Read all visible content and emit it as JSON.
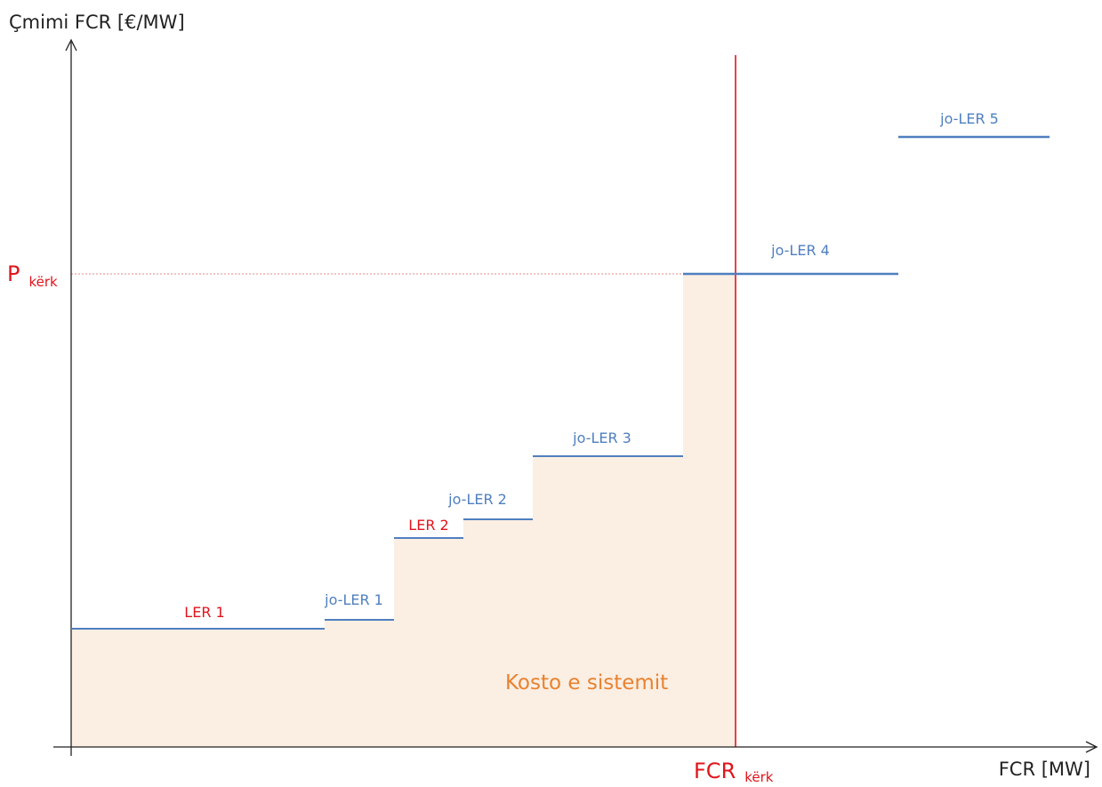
{
  "y_axis_title": "Çmimi FCR [€/MW]",
  "x_axis_title": "FCR [MW]",
  "price_marker": {
    "main": "P",
    "sub": "kërk"
  },
  "demand_marker": {
    "main": "FCR",
    "sub": "kërk"
  },
  "cost_area_label": "Kosto e sistemit",
  "colors": {
    "ler": "#e1141b",
    "jo_ler": "#4f7fbf",
    "cost_fill": "#fbeee3",
    "cost_text": "#e8822f",
    "axis": "#222222"
  },
  "steps": [
    {
      "label": "LER 1",
      "kind": "ler"
    },
    {
      "label": "jo-LER 1",
      "kind": "jo_ler"
    },
    {
      "label": "LER 2",
      "kind": "ler"
    },
    {
      "label": "jo-LER 2",
      "kind": "jo_ler"
    },
    {
      "label": "jo-LER 3",
      "kind": "jo_ler"
    },
    {
      "label": "jo-LER 4",
      "kind": "jo_ler"
    },
    {
      "label": "jo-LER 5",
      "kind": "jo_ler"
    }
  ]
}
